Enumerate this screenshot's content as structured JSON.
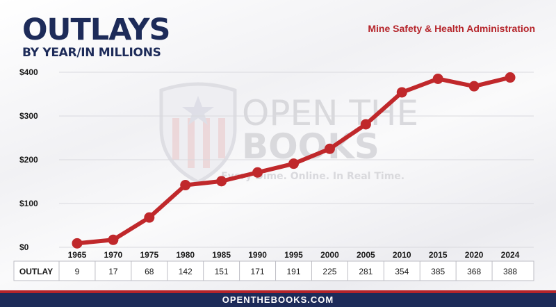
{
  "header": {
    "title": "OUTLAYS",
    "subtitle": "BY YEAR/IN MILLIONS",
    "agency": "Mine Safety & Health Administration"
  },
  "watermark": {
    "line1": "OPEN THE",
    "line2": "BOOKS",
    "tagline": "Every Dime. Online. In Real Time."
  },
  "footer": {
    "site": "OPENTHEBOOKS.COM"
  },
  "colors": {
    "navy": "#1d2b59",
    "red": "#b5242a",
    "line": "#c0282b"
  },
  "chart_data": {
    "type": "line",
    "title": "OUTLAYS",
    "subtitle": "BY YEAR/IN MILLIONS",
    "xlabel": "",
    "ylabel": "",
    "categories": [
      "1965",
      "1970",
      "1975",
      "1980",
      "1985",
      "1990",
      "1995",
      "2000",
      "2005",
      "2010",
      "2015",
      "2020",
      "2024"
    ],
    "series": [
      {
        "name": "OUTLAY",
        "values": [
          9,
          17,
          68,
          142,
          151,
          171,
          191,
          225,
          281,
          354,
          385,
          368,
          388
        ]
      }
    ],
    "value_labels": [
      "9",
      "17",
      "68",
      "142",
      "151",
      "171",
      "191",
      "225",
      "281",
      "354",
      "385",
      "368",
      "388"
    ],
    "row_label": "OUTLAY",
    "ylim": [
      0,
      400
    ],
    "yticks": [
      0,
      100,
      200,
      300,
      400
    ],
    "ytick_labels": [
      "$0",
      "$100",
      "$200",
      "$300",
      "$400"
    ],
    "grid": true,
    "legend": "none"
  }
}
